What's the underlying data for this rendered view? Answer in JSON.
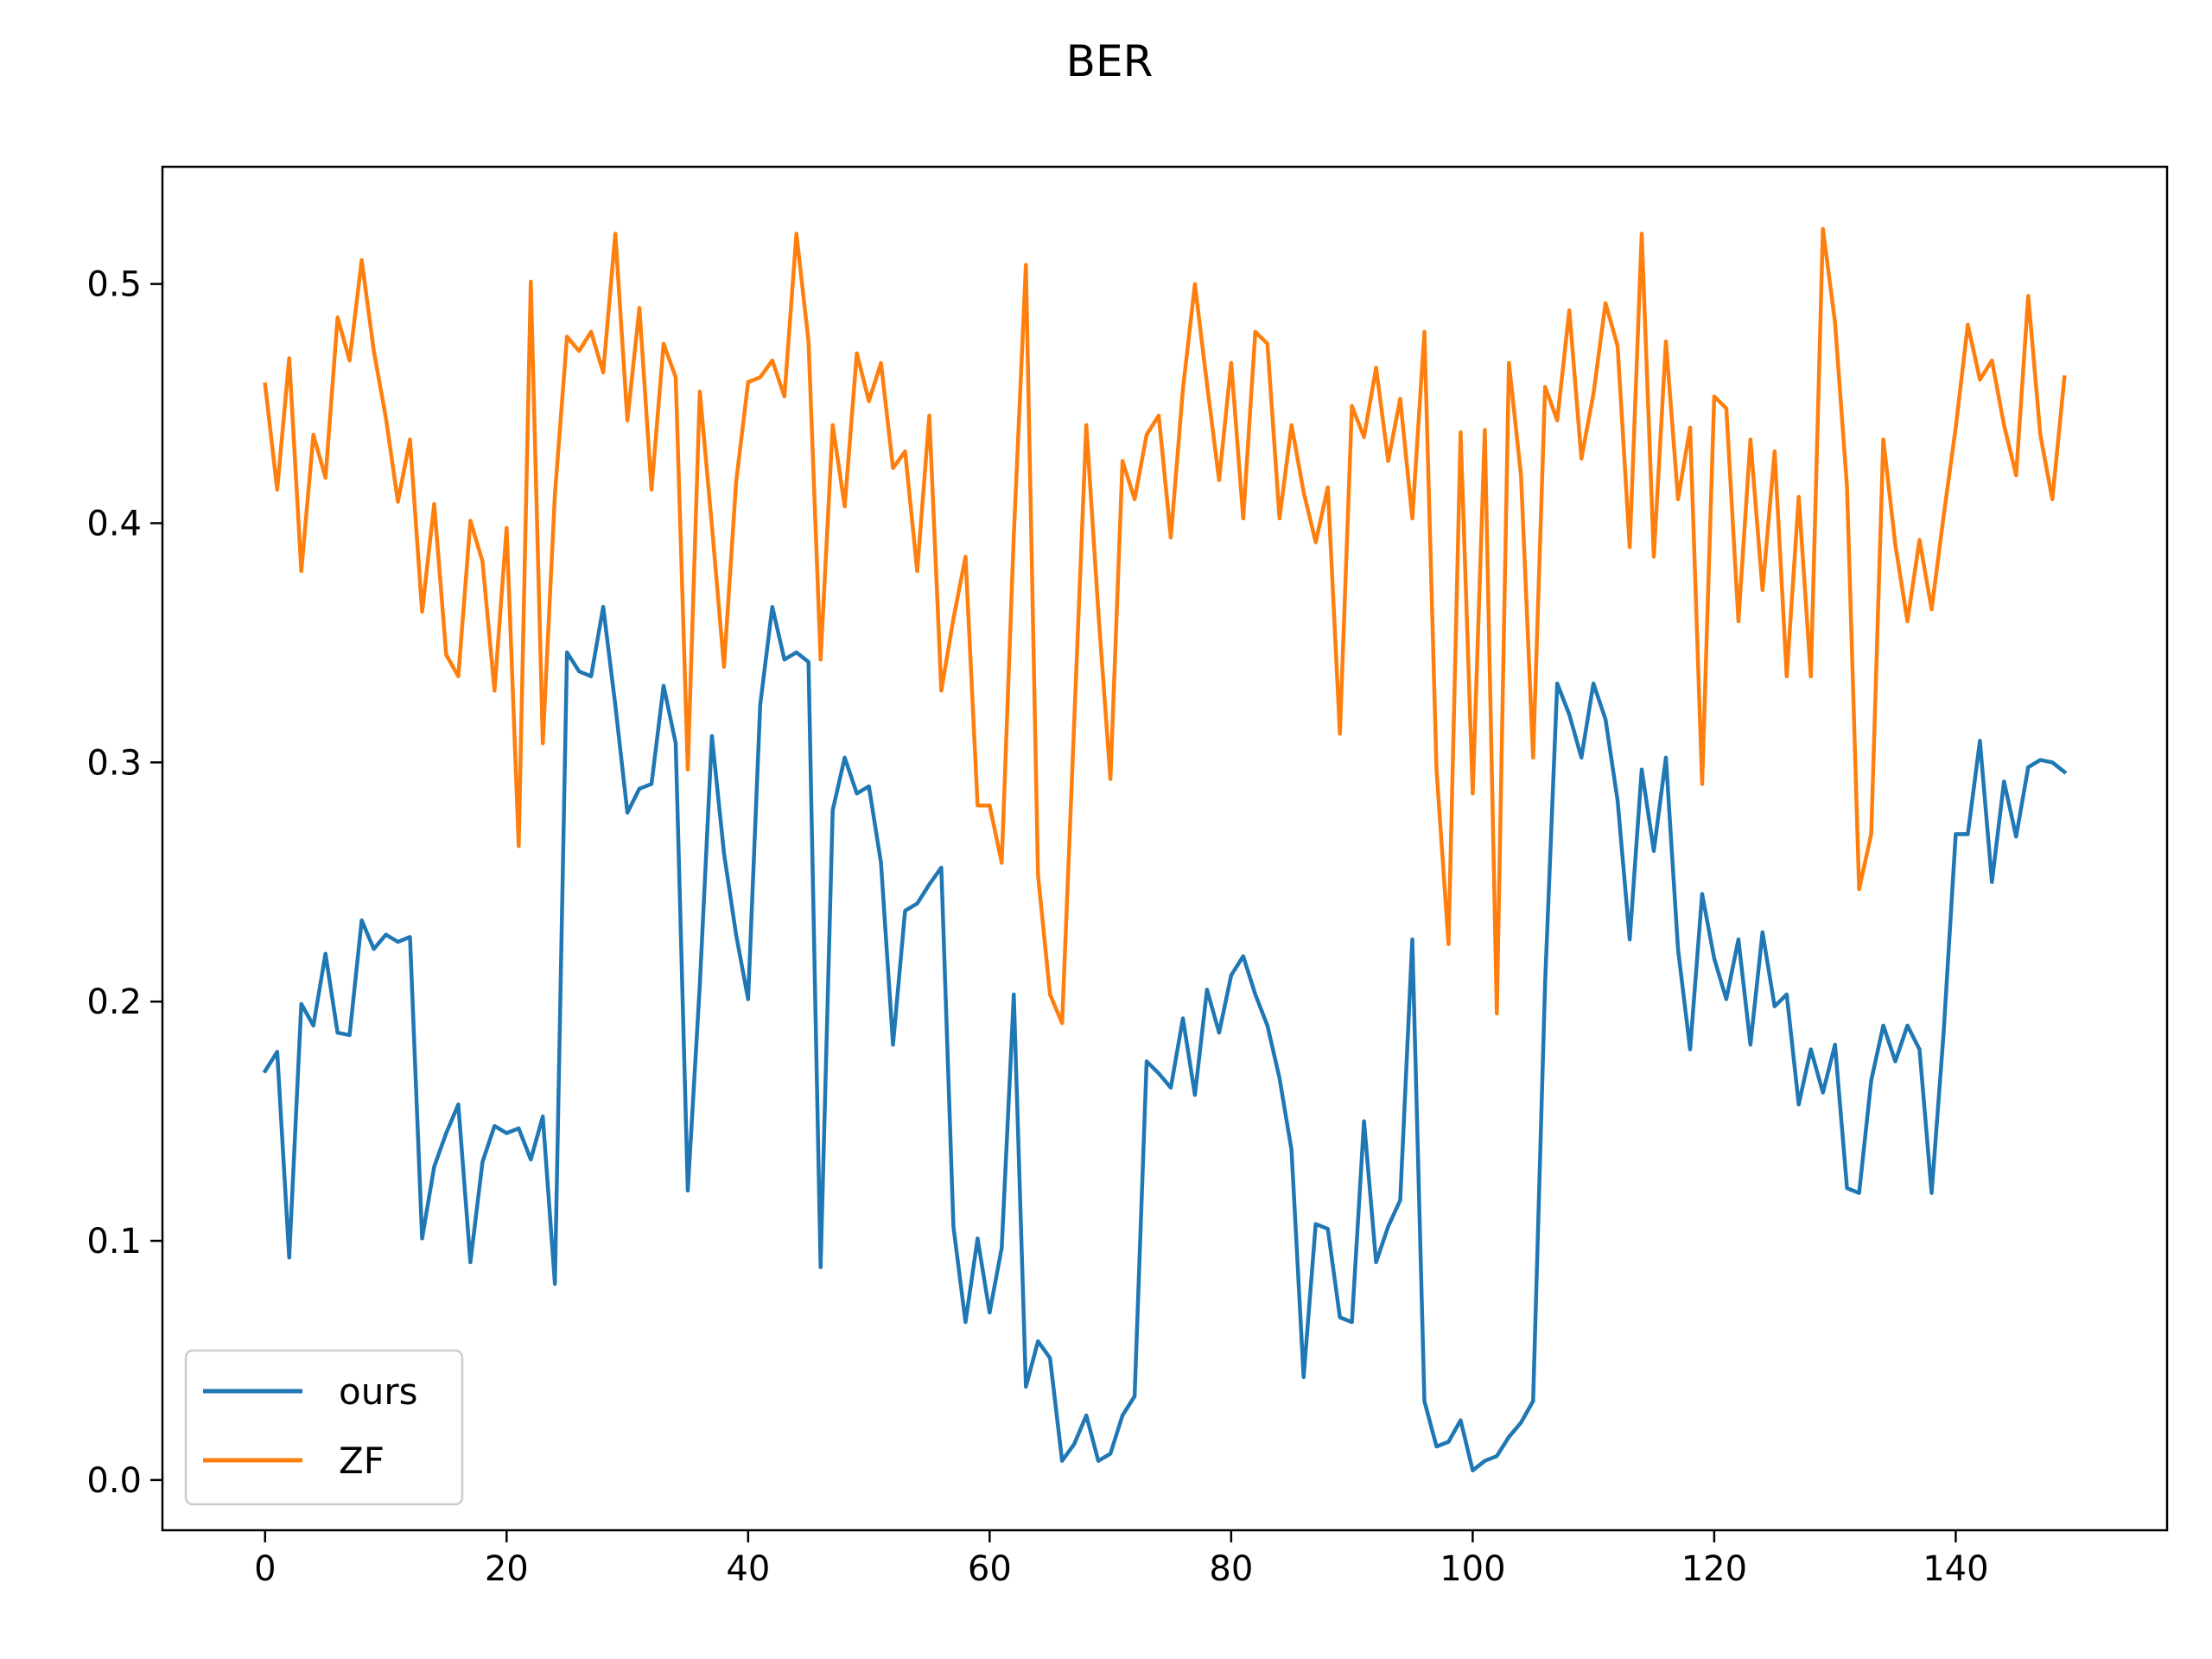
{
  "chart_data": {
    "type": "line",
    "title": "BER",
    "xlabel": "",
    "ylabel": "",
    "xlim": [
      -8.5,
      157.5
    ],
    "ylim": [
      -0.021,
      0.549
    ],
    "xticks": [
      0,
      20,
      40,
      60,
      80,
      100,
      120,
      140
    ],
    "yticks": [
      0.0,
      0.1,
      0.2,
      0.3,
      0.4,
      0.5
    ],
    "xtick_labels": [
      "0",
      "20",
      "40",
      "60",
      "80",
      "100",
      "120",
      "140"
    ],
    "ytick_labels": [
      "0.0",
      "0.1",
      "0.2",
      "0.3",
      "0.4",
      "0.5"
    ],
    "grid": false,
    "legend": {
      "placement": "lower-left"
    },
    "series": [
      {
        "name": "ours",
        "color": "#1f77b4",
        "values": [
          0.171,
          0.179,
          0.093,
          0.199,
          0.19,
          0.22,
          0.187,
          0.186,
          0.234,
          0.222,
          0.228,
          0.225,
          0.227,
          0.101,
          0.131,
          0.145,
          0.157,
          0.091,
          0.133,
          0.148,
          0.145,
          0.147,
          0.134,
          0.152,
          0.082,
          0.346,
          0.338,
          0.336,
          0.365,
          0.324,
          0.279,
          0.289,
          0.291,
          0.332,
          0.308,
          0.121,
          0.207,
          0.311,
          0.262,
          0.228,
          0.201,
          0.324,
          0.365,
          0.343,
          0.346,
          0.342,
          0.089,
          0.28,
          0.302,
          0.287,
          0.29,
          0.258,
          0.182,
          0.238,
          0.241,
          0.249,
          0.256,
          0.106,
          0.066,
          0.101,
          0.07,
          0.097,
          0.203,
          0.039,
          0.058,
          0.051,
          0.008,
          0.015,
          0.027,
          0.008,
          0.011,
          0.027,
          0.035,
          0.175,
          0.17,
          0.164,
          0.193,
          0.161,
          0.205,
          0.187,
          0.211,
          0.219,
          0.203,
          0.19,
          0.168,
          0.138,
          0.043,
          0.107,
          0.105,
          0.068,
          0.066,
          0.15,
          0.091,
          0.106,
          0.117,
          0.226,
          0.033,
          0.014,
          0.016,
          0.025,
          0.004,
          0.008,
          0.01,
          0.018,
          0.024,
          0.033,
          0.208,
          0.333,
          0.32,
          0.302,
          0.333,
          0.318,
          0.284,
          0.226,
          0.297,
          0.263,
          0.302,
          0.222,
          0.18,
          0.245,
          0.218,
          0.201,
          0.226,
          0.182,
          0.229,
          0.198,
          0.203,
          0.157,
          0.18,
          0.162,
          0.182,
          0.122,
          0.12,
          0.167,
          0.19,
          0.175,
          0.19,
          0.18,
          0.12,
          0.187,
          0.27,
          0.27,
          0.309,
          0.25,
          0.292,
          0.269,
          0.298,
          0.301,
          0.3,
          0.296
        ]
      },
      {
        "name": "ZF",
        "color": "#ff7f0e",
        "values": [
          0.458,
          0.414,
          0.469,
          0.38,
          0.437,
          0.419,
          0.486,
          0.468,
          0.51,
          0.472,
          0.444,
          0.409,
          0.435,
          0.363,
          0.408,
          0.345,
          0.336,
          0.401,
          0.384,
          0.33,
          0.398,
          0.265,
          0.501,
          0.308,
          0.412,
          0.478,
          0.472,
          0.48,
          0.463,
          0.521,
          0.443,
          0.49,
          0.414,
          0.475,
          0.461,
          0.297,
          0.455,
          0.399,
          0.34,
          0.417,
          0.459,
          0.461,
          0.468,
          0.453,
          0.521,
          0.476,
          0.343,
          0.441,
          0.407,
          0.471,
          0.451,
          0.467,
          0.423,
          0.43,
          0.38,
          0.445,
          0.33,
          0.36,
          0.386,
          0.282,
          0.282,
          0.258,
          0.395,
          0.508,
          0.253,
          0.203,
          0.191,
          0.317,
          0.441,
          0.363,
          0.293,
          0.426,
          0.41,
          0.437,
          0.445,
          0.394,
          0.456,
          0.5,
          0.458,
          0.418,
          0.467,
          0.402,
          0.48,
          0.475,
          0.402,
          0.441,
          0.413,
          0.392,
          0.415,
          0.312,
          0.449,
          0.436,
          0.465,
          0.426,
          0.452,
          0.402,
          0.48,
          0.297,
          0.224,
          0.438,
          0.287,
          0.439,
          0.195,
          0.467,
          0.42,
          0.302,
          0.457,
          0.443,
          0.489,
          0.427,
          0.454,
          0.492,
          0.474,
          0.39,
          0.521,
          0.386,
          0.476,
          0.41,
          0.44,
          0.291,
          0.453,
          0.448,
          0.359,
          0.435,
          0.372,
          0.43,
          0.336,
          0.411,
          0.336,
          0.523,
          0.484,
          0.415,
          0.247,
          0.27,
          0.435,
          0.391,
          0.359,
          0.393,
          0.364,
          0.403,
          0.44,
          0.483,
          0.46,
          0.468,
          0.441,
          0.42,
          0.495,
          0.437,
          0.41,
          0.461
        ]
      }
    ]
  }
}
